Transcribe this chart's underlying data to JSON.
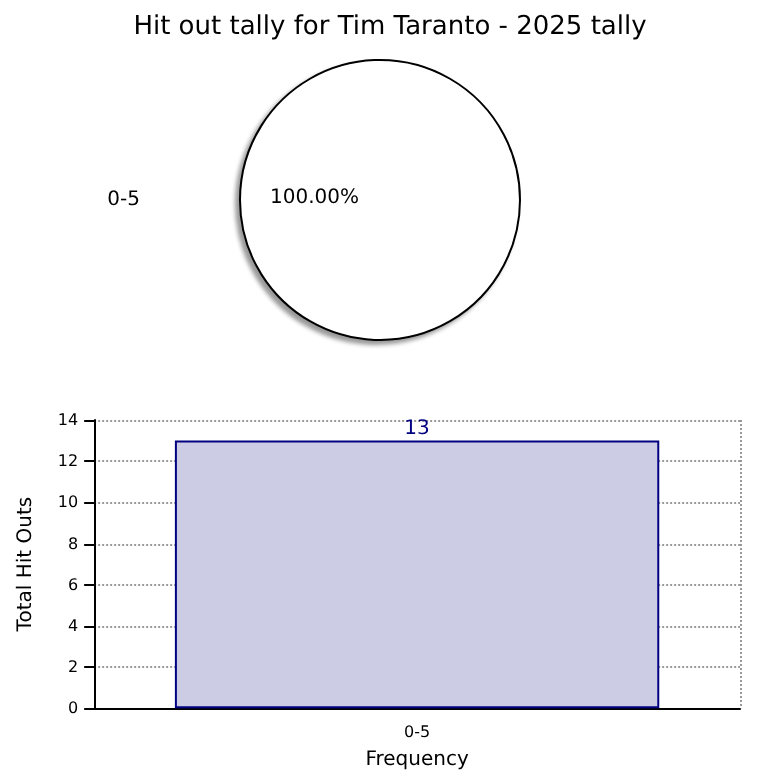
{
  "chart_data": [
    {
      "type": "pie",
      "title": "Hit out tally for Tim Taranto - 2025 tally",
      "categories": [
        "0-5"
      ],
      "values": [
        100
      ],
      "colors": [
        "#ffffff"
      ],
      "value_labels": [
        "100.00%"
      ]
    },
    {
      "type": "bar",
      "categories": [
        "0-5"
      ],
      "values": [
        13
      ],
      "color": "#ccccE5",
      "xlabel": "Frequency",
      "ylabel": "Total Hit Outs",
      "ylim": [
        0,
        14
      ],
      "yticks": [
        0,
        2,
        4,
        6,
        8,
        10,
        12,
        14
      ],
      "grid": true,
      "data_labels": true
    }
  ]
}
